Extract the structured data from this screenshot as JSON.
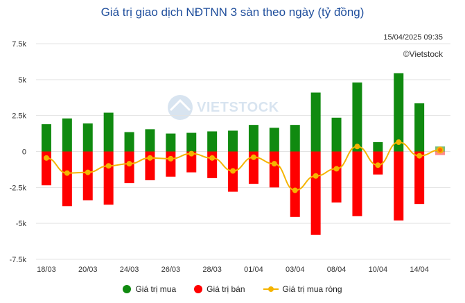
{
  "chart_data": {
    "type": "bar",
    "title": "Giá trị giao dịch NĐTNN 3 sàn theo ngày (tỷ đồng)",
    "timestamp": "15/04/2025 09:35",
    "copyright": "©Vietstock",
    "watermark": "VIETSTOCK",
    "ylim": [
      -7500,
      7500
    ],
    "yticks": [
      {
        "value": 7500,
        "label": "7.5k"
      },
      {
        "value": 5000,
        "label": "5k"
      },
      {
        "value": 2500,
        "label": "2.5k"
      },
      {
        "value": 0,
        "label": "0"
      },
      {
        "value": -2500,
        "label": "-2.5k"
      },
      {
        "value": -5000,
        "label": "-5k"
      },
      {
        "value": -7500,
        "label": "-7.5k"
      }
    ],
    "categories": [
      "18/03",
      "19/03",
      "20/03",
      "21/03",
      "24/03",
      "25/03",
      "26/03",
      "27/03",
      "28/03",
      "31/03",
      "01/04",
      "02/04",
      "03/04",
      "04/04",
      "08/04",
      "09/04",
      "10/04",
      "11/04",
      "14/04",
      "15/04"
    ],
    "x_tick_labels": [
      "18/03",
      "20/03",
      "24/03",
      "26/03",
      "28/03",
      "01/04",
      "03/04",
      "08/04",
      "10/04",
      "14/04"
    ],
    "grid": true,
    "legend_position": "bottom",
    "series": [
      {
        "name": "Giá trị mua",
        "color": "#108a10",
        "values": [
          1900,
          2300,
          1950,
          2700,
          1350,
          1550,
          1250,
          1300,
          1400,
          1450,
          1850,
          1650,
          1850,
          4100,
          2350,
          4800,
          650,
          5450,
          3350,
          350
        ]
      },
      {
        "name": "Giá trị bán",
        "color": "#ff0000",
        "values": [
          -2350,
          -3800,
          -3400,
          -3700,
          -2200,
          -2000,
          -1750,
          -1450,
          -1850,
          -2800,
          -2250,
          -2500,
          -4550,
          -5800,
          -3550,
          -4500,
          -1600,
          -4800,
          -3650,
          -250
        ]
      },
      {
        "name": "Giá trị mua ròng",
        "color": "#f5b400",
        "values": [
          -450,
          -1500,
          -1450,
          -1000,
          -850,
          -450,
          -500,
          -150,
          -450,
          -1350,
          -400,
          -850,
          -2700,
          -1700,
          -1200,
          350,
          -950,
          650,
          -300,
          100
        ]
      }
    ]
  }
}
